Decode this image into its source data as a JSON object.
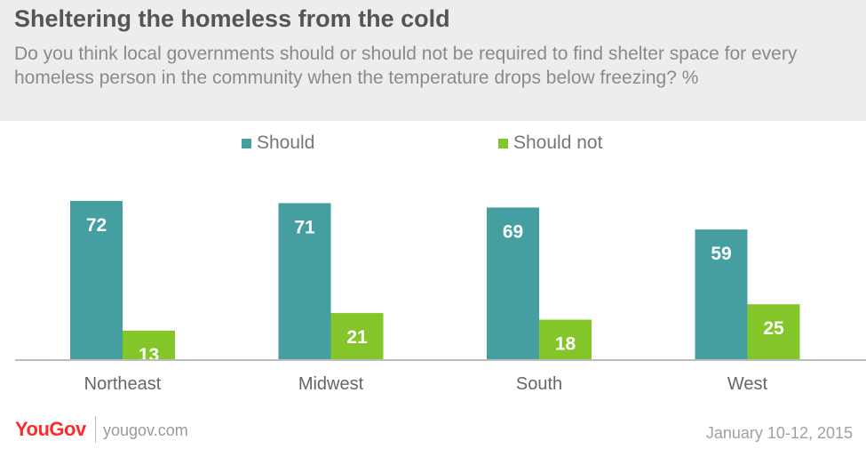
{
  "header": {
    "title": "Sheltering the homeless from the cold",
    "subtitle": "Do you think local governments should or should not be required to find shelter space for every homeless person in the community when the temperature drops below freezing? %"
  },
  "footer": {
    "brand": "YouGov",
    "site": "yougov.com",
    "date": "January 10-12, 2015"
  },
  "colors": {
    "should": "#459e9f",
    "should_not": "#84c62a",
    "axis": "#bbbbbb"
  },
  "chart_data": {
    "type": "bar",
    "categories": [
      "Northeast",
      "Midwest",
      "South",
      "West"
    ],
    "series": [
      {
        "name": "Should",
        "values": [
          72,
          71,
          69,
          59
        ]
      },
      {
        "name": "Should not",
        "values": [
          13,
          21,
          18,
          25
        ]
      }
    ],
    "legend_position": "top-center",
    "grid": false,
    "ylim": [
      0,
      100
    ]
  }
}
